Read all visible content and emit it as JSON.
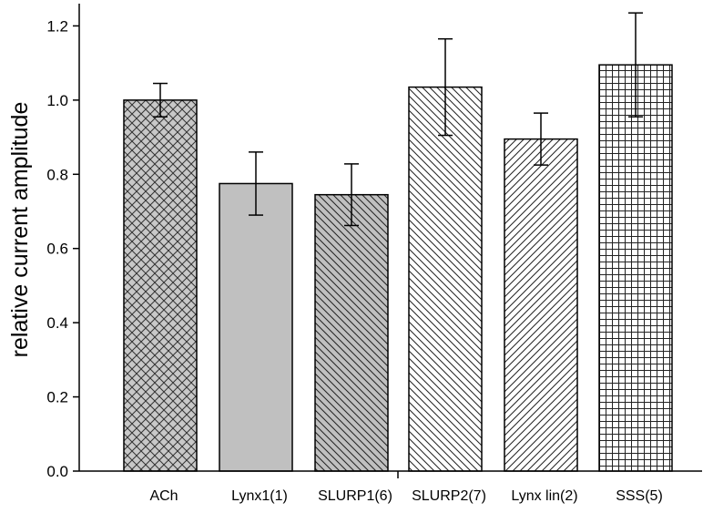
{
  "chart_data": {
    "type": "bar",
    "categories": [
      "ACh",
      "Lynx1(1)",
      "SLURP1(6)",
      "SLURP2(7)",
      "Lynx lin(2)",
      "SSS(5)"
    ],
    "values": [
      1.0,
      0.775,
      0.745,
      1.035,
      0.895,
      1.095
    ],
    "error_bars": [
      0.045,
      0.085,
      0.083,
      0.13,
      0.07,
      0.14
    ],
    "ylabel": "relative current amplitude",
    "xlabel": "",
    "title": "",
    "ylim": [
      0,
      1.26
    ],
    "yticks": [
      "0.0",
      "0.2",
      "0.4",
      "0.6",
      "0.8",
      "1.0",
      "1.2"
    ],
    "grid": false,
    "bar_fills": [
      "crosshatch",
      "solid-gray",
      "back-diagonal-gray",
      "back-diagonal",
      "forward-diagonal",
      "grid"
    ]
  }
}
